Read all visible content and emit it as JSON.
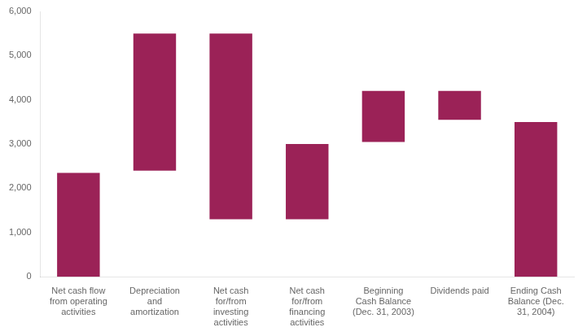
{
  "chart_data": {
    "type": "bar",
    "categories": [
      "Net cash flow\nfrom operating\nactivities",
      "Depreciation\nand\namortization",
      "Net cash\nfor/from\ninvesting\nactivities",
      "Net cash\nfor/from\nfinancing\nactivities",
      "Beginning\nCash Balance\n(Dec. 31, 2003)",
      "Dividends paid",
      "Ending Cash\nBalance (Dec.\n31, 2004)"
    ],
    "bottoms": [
      0,
      2400,
      1300,
      1300,
      3050,
      3550,
      0
    ],
    "values": [
      2350,
      3100,
      4200,
      1700,
      1150,
      650,
      3500
    ],
    "color": "#9B2257",
    "ylim": [
      0,
      6000
    ],
    "yticks": [
      0,
      {
        "value": 1000,
        "label": "1,000"
      },
      {
        "value": 2000,
        "label": "2,000"
      },
      {
        "value": 3000,
        "label": "3,000"
      },
      {
        "value": 4000,
        "label": "4,000"
      },
      {
        "value": 5000,
        "label": "5,000"
      },
      {
        "value": 6000,
        "label": "6,000"
      }
    ],
    "grid": false
  }
}
